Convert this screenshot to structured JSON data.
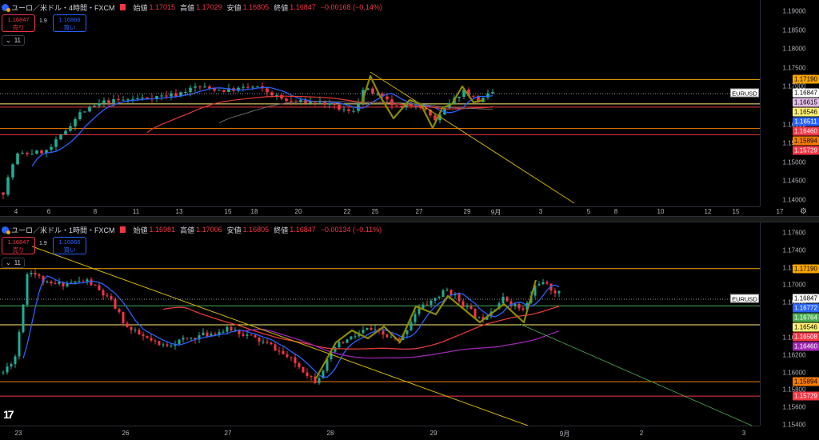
{
  "colors": {
    "up": "#22ab94",
    "down": "#f23645",
    "bg": "#000000",
    "ma_blue": "#2962ff",
    "ma_red": "#e03b3b",
    "ma_purple": "#9c27b0",
    "ma_gray": "#6b6b6b",
    "orange": "#f7a600",
    "yellow": "#c9b000",
    "green": "#4caf50"
  },
  "top": {
    "legend": {
      "title": "ユーロ／米ドル・4時間・FXCM",
      "o_label": "始値",
      "o": "1.17015",
      "h_label": "高値",
      "h": "1.17029",
      "l_label": "安値",
      "l": "1.16805",
      "c_label": "終値",
      "c": "1.16847",
      "chg": "−0.00168 (−0.14%)"
    },
    "sell": {
      "price": "1.16847",
      "label": "売り"
    },
    "buy": {
      "price": "1.16866",
      "label": "買い"
    },
    "spread": "1.9",
    "indicator_count": "11",
    "symbol_tag": "EURUSD",
    "y_ticks": [
      "1.19000",
      "1.18500",
      "1.18000",
      "1.17500",
      "1.17000",
      "1.16000",
      "1.15500",
      "1.15000",
      "1.14500",
      "1.14000"
    ],
    "badges": [
      {
        "v": "1.17190",
        "bg": "#f7a600",
        "fg": "#000"
      },
      {
        "v": "1.16847",
        "bg": "#ffffff",
        "fg": "#000"
      },
      {
        "v": "1.16615",
        "bg": "#e1bee7",
        "fg": "#000"
      },
      {
        "v": "1.16546",
        "bg": "#fff176",
        "fg": "#000"
      },
      {
        "v": "1.16511",
        "bg": "#2962ff",
        "fg": "#fff"
      },
      {
        "v": "1.16460",
        "bg": "#f23645",
        "fg": "#fff"
      },
      {
        "v": "1.15894",
        "bg": "#f57c00",
        "fg": "#000"
      },
      {
        "v": "1.15729",
        "bg": "#f23645",
        "fg": "#fff"
      }
    ],
    "x_ticks": [
      "4",
      "6",
      "8",
      "11",
      "13",
      "15",
      "18",
      "20",
      "22",
      "25",
      "27",
      "29",
      "9月",
      "3",
      "5",
      "8",
      "10",
      "12",
      "15",
      "17"
    ]
  },
  "bottom": {
    "legend": {
      "title": "ユーロ／米ドル・1時間・FXCM",
      "o_label": "始値",
      "o": "1.16981",
      "h_label": "高値",
      "h": "1.17006",
      "l_label": "安値",
      "l": "1.16805",
      "c_label": "終値",
      "c": "1.16847",
      "chg": "−0.00134 (−0.11%)"
    },
    "sell": {
      "price": "1.16847",
      "label": "売り"
    },
    "buy": {
      "price": "1.16866",
      "label": "買い"
    },
    "spread": "1.9",
    "indicator_count": "11",
    "symbol_tag": "EURUSD",
    "y_ticks": [
      "1.17600",
      "1.17400",
      "1.17200",
      "1.17000",
      "1.16800",
      "1.16400",
      "1.16200",
      "1.16000",
      "1.15800",
      "1.15600",
      "1.15400"
    ],
    "badges": [
      {
        "v": "1.17190",
        "bg": "#f7a600",
        "fg": "#000"
      },
      {
        "v": "1.16847",
        "bg": "#ffffff",
        "fg": "#000"
      },
      {
        "v": "1.16772",
        "bg": "#2962ff",
        "fg": "#fff"
      },
      {
        "v": "1.16764",
        "bg": "#4caf50",
        "fg": "#fff"
      },
      {
        "v": "1.16546",
        "bg": "#fff176",
        "fg": "#000"
      },
      {
        "v": "1.16508",
        "bg": "#f23645",
        "fg": "#fff"
      },
      {
        "v": "1.16460",
        "bg": "#9c27b0",
        "fg": "#fff"
      },
      {
        "v": "1.15894",
        "bg": "#f57c00",
        "fg": "#000"
      },
      {
        "v": "1.15729",
        "bg": "#f23645",
        "fg": "#fff"
      }
    ],
    "x_ticks": [
      "23",
      "26",
      "27",
      "28",
      "29",
      "9月",
      "2",
      "3"
    ]
  }
}
